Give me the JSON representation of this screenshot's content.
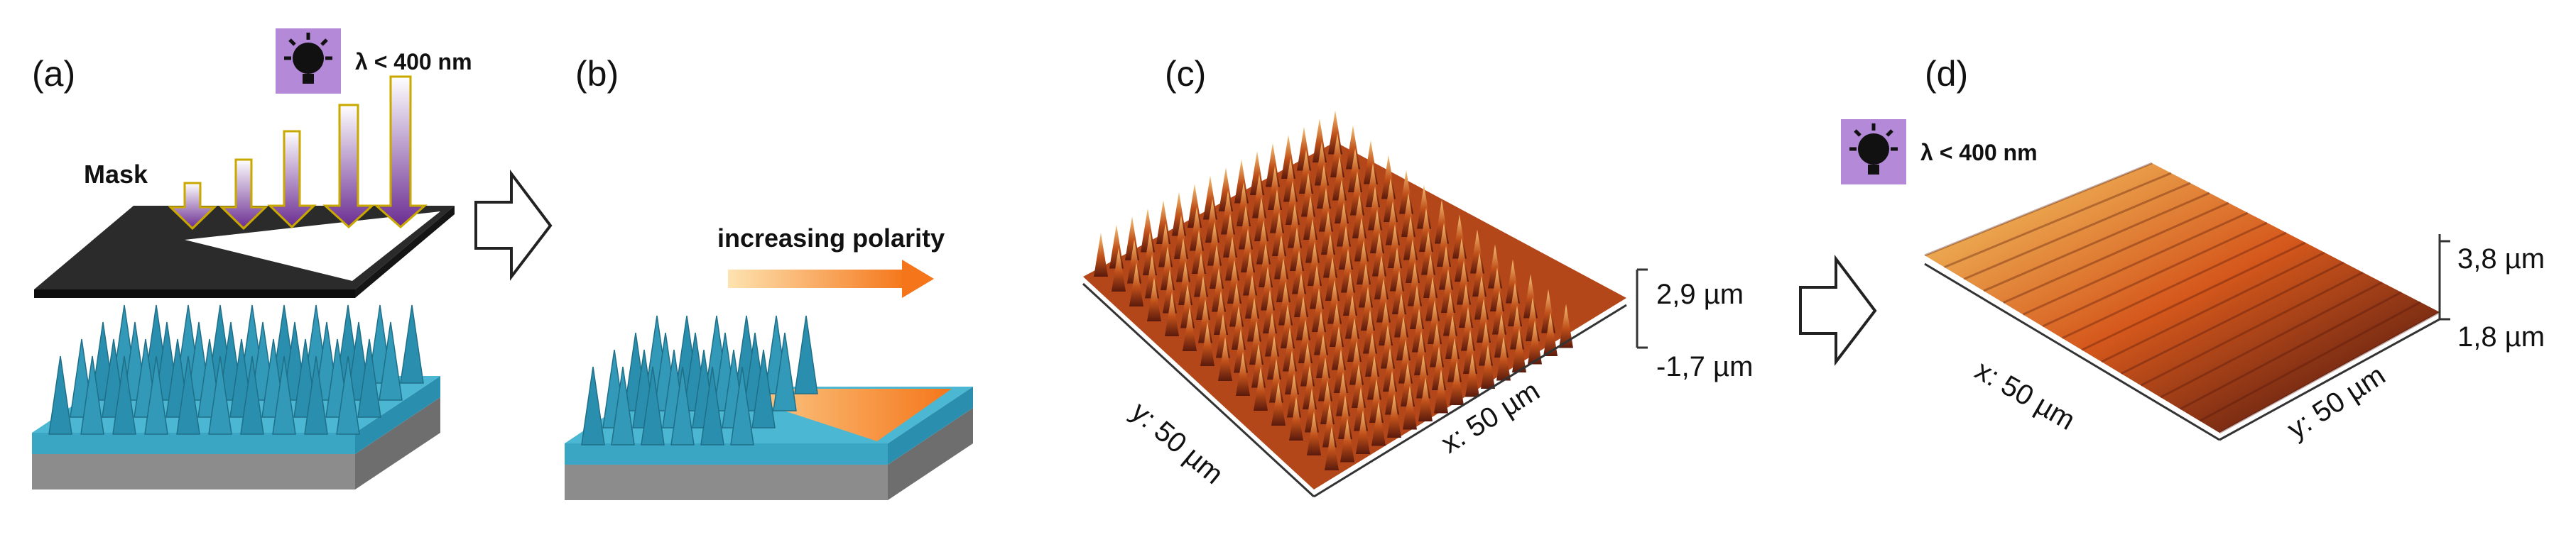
{
  "panels": {
    "a": {
      "label": "(a)",
      "lamp_icon": "light-bulb-icon",
      "wavelength": "λ < 400 nm",
      "mask_label": "Mask"
    },
    "b": {
      "label": "(b)",
      "gradient_label": "increasing polarity"
    },
    "c": {
      "label": "(c)",
      "z_max": "2,9 µm",
      "z_min": "-1,7 µm",
      "x_axis": "x: 50 µm",
      "y_axis": "y: 50 µm"
    },
    "d": {
      "label": "(d)",
      "lamp_icon": "light-bulb-icon",
      "wavelength": "λ < 400 nm",
      "z_max": "3,8 µm",
      "z_min": "1,8 µm",
      "x_axis": "x: 50 µm",
      "y_axis": "y: 50 µm"
    }
  },
  "colors": {
    "spike_teal": "#2a8fae",
    "base_teal": "#3aa6c4",
    "substrate_gray": "#8c8c8c",
    "uv_purple": "#6a2c91",
    "lamp_bg": "#b48ad8",
    "polarity_orange": "#f5761a",
    "afm_dark": "#3a0d0d",
    "afm_mid": "#c0501a",
    "afm_light": "#f6c77a"
  }
}
